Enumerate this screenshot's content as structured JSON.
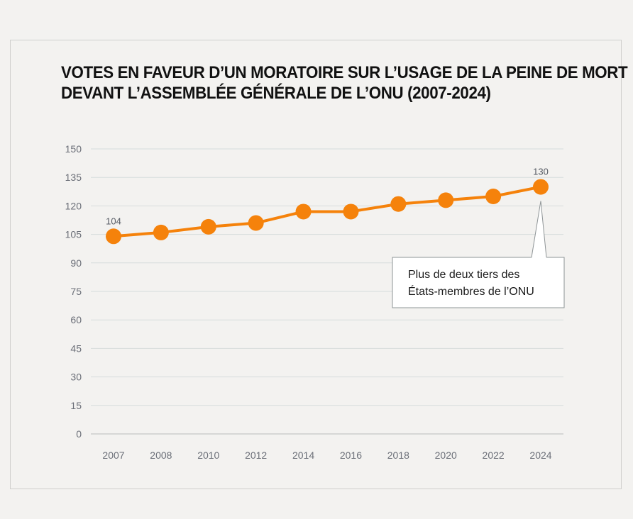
{
  "chart_data": {
    "type": "line",
    "title_lines": [
      "VOTES EN FAVEUR D’UN MORATOIRE SUR L’USAGE DE LA PEINE DE MORT",
      "DEVANT L’ASSEMBLÉE GÉNÉRALE DE L’ONU (2007-2024)"
    ],
    "xlabel": "",
    "ylabel": "",
    "categories": [
      "2007",
      "2008",
      "2010",
      "2012",
      "2014",
      "2016",
      "2018",
      "2020",
      "2022",
      "2024"
    ],
    "series": [
      {
        "values": [
          104,
          106,
          109,
          111,
          117,
          117,
          121,
          123,
          125,
          130
        ],
        "color": "#f5820b"
      }
    ],
    "y_ticks": [
      0,
      15,
      30,
      45,
      60,
      75,
      90,
      105,
      120,
      135,
      150
    ],
    "ylim": [
      0,
      150
    ],
    "grid": true,
    "data_labels": [
      {
        "category": "2007",
        "text": "104"
      },
      {
        "category": "2024",
        "text": "130"
      }
    ],
    "annotation": {
      "target_category": "2024",
      "lines": [
        "Plus de deux tiers des",
        "États-membres de l’ONU"
      ]
    }
  },
  "colors": {
    "background": "#f3f2f0",
    "line": "#f5820b",
    "grid": "#d6dcdc",
    "axis": "#b9bcbd",
    "tick_text": "#6b6f78"
  }
}
